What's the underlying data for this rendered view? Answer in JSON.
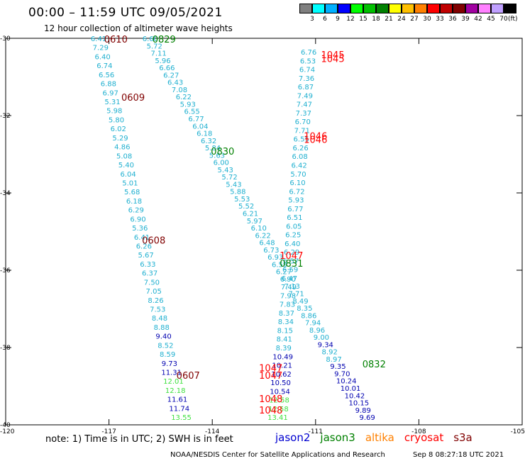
{
  "title": "00:00 – 11:59 UTC 09/05/2021",
  "subtitle": "12 hour collection of altimeter wave heights",
  "legend": {
    "colors": [
      "#808080",
      "#00ffff",
      "#00b0ff",
      "#0000ff",
      "#00ff00",
      "#00c000",
      "#008000",
      "#ffff00",
      "#ffc000",
      "#ff8000",
      "#ff0000",
      "#c00000",
      "#800000",
      "#a000a0",
      "#ff80ff",
      "#c0a0ff",
      "#000000"
    ],
    "labels": [
      "3",
      "6",
      "9",
      "12",
      "15",
      "18",
      "21",
      "24",
      "27",
      "30",
      "33",
      "36",
      "39",
      "42",
      "45",
      "70"
    ],
    "unit": "(ft)"
  },
  "map_data": {
    "lat_ticks": [
      "-30",
      "-32",
      "-34",
      "-36",
      "-38",
      "-40"
    ],
    "lon_ticks": [
      "-120",
      "-117",
      "-114",
      "-111",
      "-108",
      "-105"
    ],
    "track_colors": {
      "jason2": "#0000b0",
      "jason3": "#008000",
      "altika": "#ff8000",
      "cryosat": "#ff0000",
      "s3a": "#800000",
      "light_blue": "#20b0d0",
      "light_green": "#40e040"
    },
    "times": [
      {
        "label": "0610",
        "lon": -116.8,
        "lat": -30.0,
        "color": "#800000"
      },
      {
        "label": "0829",
        "lon": -115.4,
        "lat": -30.0,
        "color": "#008000"
      },
      {
        "label": "1045",
        "lon": -110.5,
        "lat": -30.4,
        "color": "#ff0000"
      },
      {
        "label": "1045",
        "lon": -110.5,
        "lat": -30.5,
        "color": "#ff0000"
      },
      {
        "label": "0609",
        "lon": -116.3,
        "lat": -31.5,
        "color": "#800000"
      },
      {
        "label": "1046",
        "lon": -111.0,
        "lat": -32.5,
        "color": "#ff0000"
      },
      {
        "label": "1046",
        "lon": -111.0,
        "lat": -32.6,
        "color": "#ff0000"
      },
      {
        "label": "0830",
        "lon": -113.7,
        "lat": -32.9,
        "color": "#008000"
      },
      {
        "label": "0608",
        "lon": -115.7,
        "lat": -35.2,
        "color": "#800000"
      },
      {
        "label": "1047",
        "lon": -111.7,
        "lat": -35.6,
        "color": "#ff0000"
      },
      {
        "label": "0831",
        "lon": -111.7,
        "lat": -35.8,
        "color": "#008000"
      },
      {
        "label": "0832",
        "lon": -109.3,
        "lat": -38.4,
        "color": "#008000"
      },
      {
        "label": "1047",
        "lon": -112.3,
        "lat": -38.5,
        "color": "#ff0000"
      },
      {
        "label": "1047",
        "lon": -112.3,
        "lat": -38.7,
        "color": "#ff0000"
      },
      {
        "label": "0607",
        "lon": -114.7,
        "lat": -38.7,
        "color": "#800000"
      },
      {
        "label": "1048",
        "lon": -112.3,
        "lat": -39.3,
        "color": "#ff0000"
      },
      {
        "label": "1048",
        "lon": -112.3,
        "lat": -39.6,
        "color": "#ff0000"
      }
    ],
    "tracks": [
      {
        "name": "s3a-track",
        "start": [
          -117.3,
          -30.0
        ],
        "end": [
          -114.9,
          -39.8
        ],
        "values": [
          {
            "v": "6.41",
            "c": "light_blue"
          },
          {
            "v": "7.29",
            "c": "light_blue"
          },
          {
            "v": "6.40",
            "c": "light_blue"
          },
          {
            "v": "6.74",
            "c": "light_blue"
          },
          {
            "v": "6.56",
            "c": "light_blue"
          },
          {
            "v": "6.88",
            "c": "light_blue"
          },
          {
            "v": "6.97",
            "c": "light_blue"
          },
          {
            "v": "5.31",
            "c": "light_blue"
          },
          {
            "v": "5.98",
            "c": "light_blue"
          },
          {
            "v": "5.80",
            "c": "light_blue"
          },
          {
            "v": "6.02",
            "c": "light_blue"
          },
          {
            "v": "5.29",
            "c": "light_blue"
          },
          {
            "v": "4.86",
            "c": "light_blue"
          },
          {
            "v": "5.08",
            "c": "light_blue"
          },
          {
            "v": "5.40",
            "c": "light_blue"
          },
          {
            "v": "6.04",
            "c": "light_blue"
          },
          {
            "v": "5.01",
            "c": "light_blue"
          },
          {
            "v": "5.68",
            "c": "light_blue"
          },
          {
            "v": "6.18",
            "c": "light_blue"
          },
          {
            "v": "6.29",
            "c": "light_blue"
          },
          {
            "v": "6.90",
            "c": "light_blue"
          },
          {
            "v": "5.36",
            "c": "light_blue"
          },
          {
            "v": "6.41",
            "c": "light_blue"
          },
          {
            "v": "6.26",
            "c": "light_blue"
          },
          {
            "v": "5.67",
            "c": "light_blue"
          },
          {
            "v": "6.33",
            "c": "light_blue"
          },
          {
            "v": "6.37",
            "c": "light_blue"
          },
          {
            "v": "7.50",
            "c": "light_blue"
          },
          {
            "v": "7.05",
            "c": "light_blue"
          },
          {
            "v": "8.26",
            "c": "light_blue"
          },
          {
            "v": "7.53",
            "c": "light_blue"
          },
          {
            "v": "8.48",
            "c": "light_blue"
          },
          {
            "v": "8.88",
            "c": "light_blue"
          },
          {
            "v": "9.40",
            "c": "jason2"
          },
          {
            "v": "8.52",
            "c": "light_blue"
          },
          {
            "v": "8.59",
            "c": "light_blue"
          },
          {
            "v": "9.73",
            "c": "jason2"
          },
          {
            "v": "11.31",
            "c": "jason2"
          },
          {
            "v": "12.01",
            "c": "light_green"
          },
          {
            "v": "12.18",
            "c": "light_green"
          },
          {
            "v": "11.61",
            "c": "jason2"
          },
          {
            "v": "11.74",
            "c": "jason2"
          },
          {
            "v": "13.55",
            "c": "light_green"
          }
        ]
      },
      {
        "name": "jason3-track",
        "start": [
          -115.8,
          -30.0
        ],
        "end": [
          -109.5,
          -39.8
        ],
        "values": [
          {
            "v": "6.60",
            "c": "light_blue"
          },
          {
            "v": "5.72",
            "c": "light_blue"
          },
          {
            "v": "7.11",
            "c": "light_blue"
          },
          {
            "v": "5.96",
            "c": "light_blue"
          },
          {
            "v": "6.66",
            "c": "light_blue"
          },
          {
            "v": "6.27",
            "c": "light_blue"
          },
          {
            "v": "6.43",
            "c": "light_blue"
          },
          {
            "v": "7.08",
            "c": "light_blue"
          },
          {
            "v": "6.22",
            "c": "light_blue"
          },
          {
            "v": "5.93",
            "c": "light_blue"
          },
          {
            "v": "6.55",
            "c": "light_blue"
          },
          {
            "v": "6.77",
            "c": "light_blue"
          },
          {
            "v": "6.04",
            "c": "light_blue"
          },
          {
            "v": "6.18",
            "c": "light_blue"
          },
          {
            "v": "6.32",
            "c": "light_blue"
          },
          {
            "v": "5.84",
            "c": "light_blue"
          },
          {
            "v": "5.63",
            "c": "light_blue"
          },
          {
            "v": "6.00",
            "c": "light_blue"
          },
          {
            "v": "5.43",
            "c": "light_blue"
          },
          {
            "v": "5.72",
            "c": "light_blue"
          },
          {
            "v": "5.43",
            "c": "light_blue"
          },
          {
            "v": "5.88",
            "c": "light_blue"
          },
          {
            "v": "5.53",
            "c": "light_blue"
          },
          {
            "v": "5.52",
            "c": "light_blue"
          },
          {
            "v": "6.21",
            "c": "light_blue"
          },
          {
            "v": "5.97",
            "c": "light_blue"
          },
          {
            "v": "6.10",
            "c": "light_blue"
          },
          {
            "v": "6.22",
            "c": "light_blue"
          },
          {
            "v": "6.48",
            "c": "light_blue"
          },
          {
            "v": "6.73",
            "c": "light_blue"
          },
          {
            "v": "6.93",
            "c": "light_blue"
          },
          {
            "v": "6.59",
            "c": "light_blue"
          },
          {
            "v": "6.27",
            "c": "light_blue"
          },
          {
            "v": "6.90",
            "c": "light_blue"
          },
          {
            "v": "7.13",
            "c": "light_blue"
          },
          {
            "v": "7.71",
            "c": "light_blue"
          },
          {
            "v": "8.49",
            "c": "light_blue"
          },
          {
            "v": "8.35",
            "c": "light_blue"
          },
          {
            "v": "8.86",
            "c": "light_blue"
          },
          {
            "v": "7.94",
            "c": "light_blue"
          },
          {
            "v": "8.96",
            "c": "light_blue"
          },
          {
            "v": "9.00",
            "c": "light_blue"
          },
          {
            "v": "9.34",
            "c": "jason2"
          },
          {
            "v": "8.92",
            "c": "light_blue"
          },
          {
            "v": "8.97",
            "c": "light_blue"
          },
          {
            "v": "9.35",
            "c": "jason2"
          },
          {
            "v": "9.70",
            "c": "jason2"
          },
          {
            "v": "10.24",
            "c": "jason2"
          },
          {
            "v": "10.01",
            "c": "jason2"
          },
          {
            "v": "10.42",
            "c": "jason2"
          },
          {
            "v": "10.15",
            "c": "jason2"
          },
          {
            "v": "9.89",
            "c": "jason2"
          },
          {
            "v": "9.69",
            "c": "jason2"
          }
        ]
      },
      {
        "name": "cryosat-track",
        "start": [
          -111.2,
          -30.35
        ],
        "end": [
          -112.1,
          -39.8
        ],
        "values": [
          {
            "v": "6.76",
            "c": "light_blue"
          },
          {
            "v": "6.53",
            "c": "light_blue"
          },
          {
            "v": "6.74",
            "c": "light_blue"
          },
          {
            "v": "7.36",
            "c": "light_blue"
          },
          {
            "v": "6.87",
            "c": "light_blue"
          },
          {
            "v": "7.49",
            "c": "light_blue"
          },
          {
            "v": "7.47",
            "c": "light_blue"
          },
          {
            "v": "7.37",
            "c": "light_blue"
          },
          {
            "v": "6.70",
            "c": "light_blue"
          },
          {
            "v": "7.71",
            "c": "light_blue"
          },
          {
            "v": "6.55",
            "c": "light_blue"
          },
          {
            "v": "6.26",
            "c": "light_blue"
          },
          {
            "v": "6.08",
            "c": "light_blue"
          },
          {
            "v": "6.42",
            "c": "light_blue"
          },
          {
            "v": "5.70",
            "c": "light_blue"
          },
          {
            "v": "6.10",
            "c": "light_blue"
          },
          {
            "v": "6.72",
            "c": "light_blue"
          },
          {
            "v": "5.93",
            "c": "light_blue"
          },
          {
            "v": "6.77",
            "c": "light_blue"
          },
          {
            "v": "6.51",
            "c": "light_blue"
          },
          {
            "v": "6.05",
            "c": "light_blue"
          },
          {
            "v": "6.25",
            "c": "light_blue"
          },
          {
            "v": "6.40",
            "c": "light_blue"
          },
          {
            "v": "6.29",
            "c": "light_blue"
          },
          {
            "v": "6.57",
            "c": "light_blue"
          },
          {
            "v": "6.59",
            "c": "light_blue"
          },
          {
            "v": "6.47",
            "c": "light_blue"
          },
          {
            "v": "7.49",
            "c": "light_blue"
          },
          {
            "v": "7.98",
            "c": "light_blue"
          },
          {
            "v": "7.83",
            "c": "light_blue"
          },
          {
            "v": "8.37",
            "c": "light_blue"
          },
          {
            "v": "8.34",
            "c": "light_blue"
          },
          {
            "v": "8.15",
            "c": "light_blue"
          },
          {
            "v": "8.41",
            "c": "light_blue"
          },
          {
            "v": "8.39",
            "c": "light_blue"
          },
          {
            "v": "10.49",
            "c": "jason2"
          },
          {
            "v": "10.21",
            "c": "jason2"
          },
          {
            "v": "10.62",
            "c": "jason2"
          },
          {
            "v": "10.50",
            "c": "jason2"
          },
          {
            "v": "10.54",
            "c": "jason2"
          },
          {
            "v": "12.58",
            "c": "light_green"
          },
          {
            "v": "12.58",
            "c": "light_green"
          },
          {
            "v": "13.41",
            "c": "light_green"
          }
        ]
      }
    ]
  },
  "note": "note: 1) Time is in UTC; 2) SWH is in feet",
  "satellites": [
    {
      "label": "jason2",
      "color": "#0000d0"
    },
    {
      "label": "jason3",
      "color": "#008000"
    },
    {
      "label": "altika",
      "color": "#ff8000"
    },
    {
      "label": "cryosat",
      "color": "#ff0000"
    },
    {
      "label": "s3a",
      "color": "#800000"
    }
  ],
  "credit": "NOAA/NESDIS Center for Satellite Applications and Research",
  "credit_time": "Sep  8 08:27:18 UTC 2021"
}
